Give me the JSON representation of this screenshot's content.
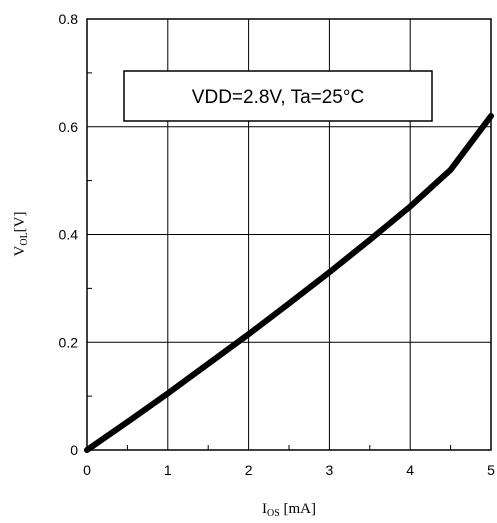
{
  "chart_data": {
    "type": "line",
    "xlim": [
      0,
      5
    ],
    "ylim": [
      0,
      0.8
    ],
    "x_ticks": [
      "0",
      "1",
      "2",
      "3",
      "4",
      "5"
    ],
    "y_ticks": [
      "0",
      "0.2",
      "0.4",
      "0.6",
      "0.8"
    ],
    "xlabel": {
      "main": "I",
      "sub": "OS",
      "rest": " [mA]"
    },
    "ylabel": {
      "main": "V",
      "sub": "OL",
      "rest": "[V]"
    },
    "annotation": "VDD=2.8V, Ta=25°C",
    "grid": true,
    "series": [
      {
        "color": "#000000",
        "x": [
          0,
          0.5,
          1,
          1.5,
          2,
          2.5,
          3,
          3.5,
          4,
          4.5,
          5
        ],
        "y": [
          0,
          0.052,
          0.105,
          0.16,
          0.215,
          0.272,
          0.33,
          0.39,
          0.452,
          0.52,
          0.62
        ]
      }
    ]
  }
}
